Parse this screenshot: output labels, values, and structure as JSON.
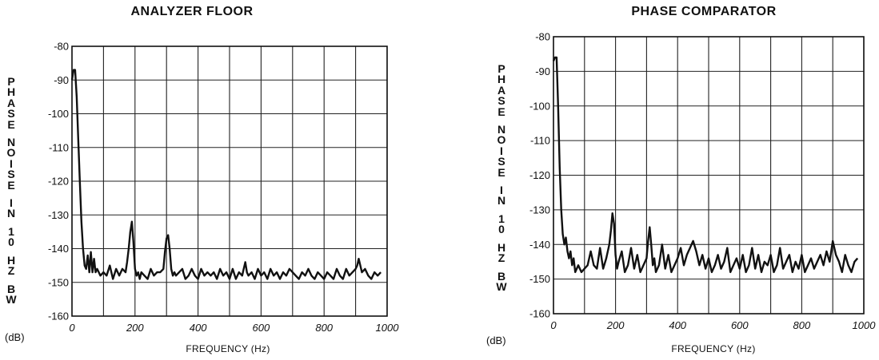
{
  "chart_data": [
    {
      "type": "line",
      "title": "ANALYZER FLOOR",
      "ylabel": "PHASE NOISE IN 10 HZ BW",
      "ylabel_unit": "(dB)",
      "xlabel": "FREQUENCY (Hz)",
      "xlim": [
        0,
        1000
      ],
      "ylim": [
        -160,
        -80
      ],
      "xticks": [
        "0",
        "200",
        "400",
        "600",
        "800",
        "1000"
      ],
      "yticks": [
        "-80",
        "-90",
        "-100",
        "-110",
        "-120",
        "-130",
        "-140",
        "-150",
        "-160"
      ],
      "grid": true,
      "x": [
        0,
        5,
        10,
        15,
        20,
        25,
        30,
        35,
        40,
        45,
        50,
        55,
        60,
        65,
        70,
        75,
        80,
        90,
        100,
        110,
        120,
        130,
        140,
        150,
        160,
        170,
        175,
        180,
        185,
        190,
        195,
        200,
        205,
        210,
        215,
        220,
        230,
        240,
        250,
        260,
        270,
        280,
        290,
        295,
        300,
        305,
        310,
        315,
        320,
        325,
        330,
        340,
        350,
        360,
        370,
        380,
        390,
        400,
        410,
        420,
        430,
        440,
        450,
        460,
        470,
        480,
        490,
        500,
        510,
        520,
        530,
        540,
        545,
        550,
        555,
        560,
        570,
        580,
        590,
        600,
        610,
        620,
        630,
        640,
        650,
        660,
        670,
        680,
        690,
        700,
        710,
        720,
        730,
        740,
        750,
        760,
        770,
        780,
        790,
        800,
        810,
        820,
        830,
        840,
        850,
        860,
        870,
        880,
        890,
        900,
        905,
        910,
        915,
        920,
        930,
        940,
        950,
        960,
        970,
        980
      ],
      "y": [
        -90,
        -87,
        -87,
        -95,
        -108,
        -120,
        -132,
        -140,
        -145,
        -146,
        -142,
        -147,
        -141,
        -147,
        -143,
        -147,
        -146,
        -148,
        -147,
        -148,
        -145,
        -149,
        -146,
        -148,
        -146,
        -147,
        -144,
        -140,
        -135,
        -132,
        -138,
        -146,
        -148,
        -147,
        -149,
        -147,
        -148,
        -149,
        -146,
        -148,
        -147,
        -147,
        -146,
        -141,
        -137,
        -136,
        -140,
        -146,
        -148,
        -147,
        -148,
        -147,
        -146,
        -149,
        -148,
        -146,
        -148,
        -149,
        -146,
        -148,
        -147,
        -148,
        -147,
        -149,
        -146,
        -148,
        -147,
        -149,
        -146,
        -149,
        -147,
        -148,
        -146,
        -144,
        -147,
        -148,
        -147,
        -149,
        -146,
        -148,
        -147,
        -149,
        -146,
        -148,
        -147,
        -149,
        -147,
        -148,
        -146,
        -147,
        -148,
        -149,
        -147,
        -148,
        -146,
        -148,
        -149,
        -147,
        -148,
        -149,
        -147,
        -148,
        -149,
        -146,
        -148,
        -149,
        -146,
        -148,
        -147,
        -146,
        -145,
        -143,
        -145,
        -147,
        -146,
        -148,
        -149,
        -147,
        -148,
        -147
      ]
    },
    {
      "type": "line",
      "title": "PHASE COMPARATOR",
      "ylabel": "PHASE NOISE IN 10 HZ BW",
      "ylabel_unit": "(dB)",
      "xlabel": "FREQUENCY (Hz)",
      "xlim": [
        0,
        1000
      ],
      "ylim": [
        -160,
        -80
      ],
      "xticks": [
        "0",
        "200",
        "400",
        "600",
        "800",
        "1000"
      ],
      "yticks": [
        "-80",
        "-90",
        "-100",
        "-110",
        "-120",
        "-130",
        "-140",
        "-150",
        "-160"
      ],
      "grid": true,
      "x": [
        0,
        5,
        10,
        15,
        20,
        25,
        30,
        35,
        40,
        45,
        50,
        55,
        60,
        65,
        70,
        80,
        90,
        100,
        110,
        120,
        130,
        140,
        150,
        160,
        170,
        180,
        185,
        190,
        195,
        200,
        205,
        210,
        220,
        230,
        240,
        250,
        260,
        270,
        280,
        290,
        300,
        305,
        310,
        315,
        320,
        325,
        330,
        340,
        350,
        360,
        370,
        380,
        390,
        400,
        410,
        420,
        430,
        440,
        450,
        460,
        470,
        480,
        490,
        500,
        510,
        520,
        530,
        540,
        550,
        560,
        570,
        580,
        590,
        600,
        610,
        620,
        630,
        640,
        650,
        660,
        670,
        680,
        690,
        700,
        710,
        720,
        730,
        740,
        750,
        760,
        770,
        780,
        790,
        800,
        810,
        820,
        830,
        840,
        850,
        860,
        870,
        880,
        890,
        900,
        910,
        920,
        930,
        940,
        950,
        960,
        970,
        980
      ],
      "y": [
        -87,
        -86,
        -86,
        -100,
        -118,
        -130,
        -137,
        -140,
        -138,
        -142,
        -144,
        -142,
        -146,
        -144,
        -148,
        -146,
        -148,
        -147,
        -146,
        -142,
        -146,
        -147,
        -141,
        -147,
        -144,
        -140,
        -136,
        -131,
        -134,
        -143,
        -147,
        -145,
        -142,
        -148,
        -146,
        -141,
        -147,
        -143,
        -148,
        -146,
        -144,
        -139,
        -135,
        -140,
        -146,
        -144,
        -148,
        -146,
        -140,
        -147,
        -143,
        -148,
        -146,
        -144,
        -141,
        -146,
        -143,
        -141,
        -139,
        -142,
        -146,
        -143,
        -147,
        -144,
        -148,
        -146,
        -143,
        -147,
        -145,
        -141,
        -148,
        -146,
        -144,
        -147,
        -143,
        -148,
        -146,
        -141,
        -147,
        -143,
        -148,
        -145,
        -146,
        -143,
        -148,
        -146,
        -141,
        -147,
        -145,
        -143,
        -148,
        -145,
        -147,
        -143,
        -148,
        -146,
        -144,
        -147,
        -145,
        -143,
        -146,
        -142,
        -145,
        -139,
        -143,
        -145,
        -148,
        -143,
        -146,
        -148,
        -145,
        -144
      ]
    }
  ]
}
